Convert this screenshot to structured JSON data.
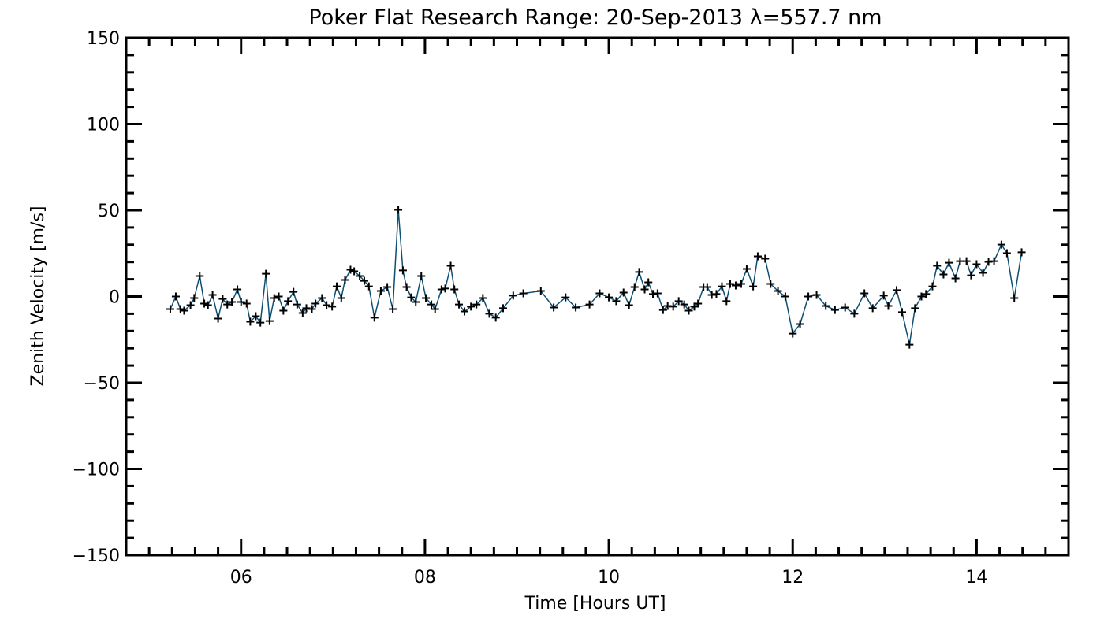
{
  "chart_data": {
    "type": "line",
    "title": "Poker Flat Research Range: 20-Sep-2013 λ=557.7 nm",
    "xlabel": "Time [Hours UT]",
    "ylabel": "Zenith Velocity [m/s]",
    "xlim": [
      4.75,
      15.0
    ],
    "ylim": [
      -150,
      150
    ],
    "xticks": [
      6,
      8,
      10,
      12,
      14
    ],
    "xtick_labels": [
      "06",
      "08",
      "10",
      "12",
      "14"
    ],
    "x_minor_step": 0.25,
    "yticks": [
      -150,
      -100,
      -50,
      0,
      50,
      100,
      150
    ],
    "ytick_labels": [
      "−150",
      "−100",
      "−50",
      "0",
      "50",
      "100",
      "150"
    ],
    "y_minor_step": 10,
    "grid": false,
    "line_color": "#0d4f75",
    "marker_color": "#000000",
    "marker": "plus",
    "series": [
      {
        "name": "Zenith Velocity",
        "x": [
          5.23,
          5.29,
          5.34,
          5.38,
          5.45,
          5.49,
          5.55,
          5.6,
          5.64,
          5.69,
          5.75,
          5.8,
          5.85,
          5.9,
          5.96,
          6.0,
          6.06,
          6.1,
          6.16,
          6.21,
          6.27,
          6.31,
          6.36,
          6.41,
          6.46,
          6.51,
          6.57,
          6.61,
          6.67,
          6.71,
          6.77,
          6.81,
          6.88,
          6.93,
          6.99,
          7.04,
          7.09,
          7.13,
          7.19,
          7.23,
          7.29,
          7.34,
          7.39,
          7.45,
          7.52,
          7.59,
          7.65,
          7.71,
          7.76,
          7.8,
          7.85,
          7.9,
          7.96,
          8.01,
          8.07,
          8.11,
          8.18,
          8.22,
          8.28,
          8.32,
          8.37,
          8.43,
          8.5,
          8.56,
          8.63,
          8.7,
          8.77,
          8.85,
          8.96,
          9.07,
          9.26,
          9.4,
          9.53,
          9.64,
          9.79,
          9.9,
          10.0,
          10.08,
          10.16,
          10.22,
          10.28,
          10.33,
          10.39,
          10.43,
          10.48,
          10.53,
          10.59,
          10.64,
          10.7,
          10.76,
          10.82,
          10.87,
          10.93,
          10.97,
          11.03,
          11.07,
          11.12,
          11.17,
          11.23,
          11.28,
          11.32,
          11.38,
          11.44,
          11.5,
          11.57,
          11.62,
          11.7,
          11.76,
          11.84,
          11.92,
          12.0,
          12.08,
          12.17,
          12.26,
          12.36,
          12.46,
          12.57,
          12.67,
          12.78,
          12.87,
          12.99,
          13.04,
          13.13,
          13.19,
          13.27,
          13.33,
          13.4,
          13.45,
          13.52,
          13.57,
          13.64,
          13.7,
          13.77,
          13.82,
          13.89,
          13.94,
          14.0,
          14.07,
          14.13,
          14.19,
          14.27,
          14.33,
          14.41,
          14.49
        ],
        "y": [
          -7.3,
          0,
          -7.3,
          -8.2,
          -5.0,
          -0.9,
          11.9,
          -4.1,
          -5.0,
          0.9,
          -12.8,
          -1.4,
          -4.6,
          -3.2,
          4.1,
          -3.2,
          -4.1,
          -14.6,
          -11.4,
          -15.1,
          13.2,
          -14.2,
          -0.9,
          0,
          -8.2,
          -2.7,
          2.7,
          -4.6,
          -9.6,
          -6.8,
          -7.3,
          -4.1,
          -0.9,
          -5.0,
          -5.9,
          5.9,
          -0.9,
          9.6,
          15.5,
          14.6,
          11.9,
          9.1,
          5.9,
          -12.3,
          3.2,
          5.5,
          -7.3,
          50.2,
          15.1,
          5.5,
          -0.5,
          -3.2,
          11.9,
          -0.9,
          -4.6,
          -7.3,
          4.1,
          4.6,
          17.8,
          4.1,
          -4.6,
          -8.7,
          -5.9,
          -4.6,
          -0.9,
          -10.0,
          -12.3,
          -6.8,
          0.5,
          1.8,
          3.2,
          -6.4,
          -0.5,
          -6.4,
          -4.6,
          1.8,
          -0.5,
          -2.7,
          2.3,
          -5.0,
          5.5,
          14.2,
          4.1,
          8.2,
          1.4,
          1.8,
          -7.8,
          -5.5,
          -5.9,
          -2.7,
          -4.6,
          -8.2,
          -5.9,
          -4.1,
          5.5,
          5.5,
          0.9,
          1.4,
          5.9,
          -2.7,
          7.3,
          6.4,
          7.3,
          16.0,
          5.9,
          23.3,
          21.9,
          7.3,
          3.2,
          0,
          -21.5,
          -16.0,
          0,
          0.9,
          -5.5,
          -7.8,
          -6.4,
          -10.0,
          1.8,
          -6.8,
          0.5,
          -5.5,
          3.7,
          -9.1,
          -27.9,
          -6.8,
          0,
          1.4,
          5.9,
          17.8,
          12.8,
          19.6,
          10.5,
          20.5,
          20.5,
          12.3,
          18.7,
          13.7,
          20.1,
          20.5,
          30.1,
          25.1,
          -0.9,
          25.6
        ]
      }
    ]
  }
}
